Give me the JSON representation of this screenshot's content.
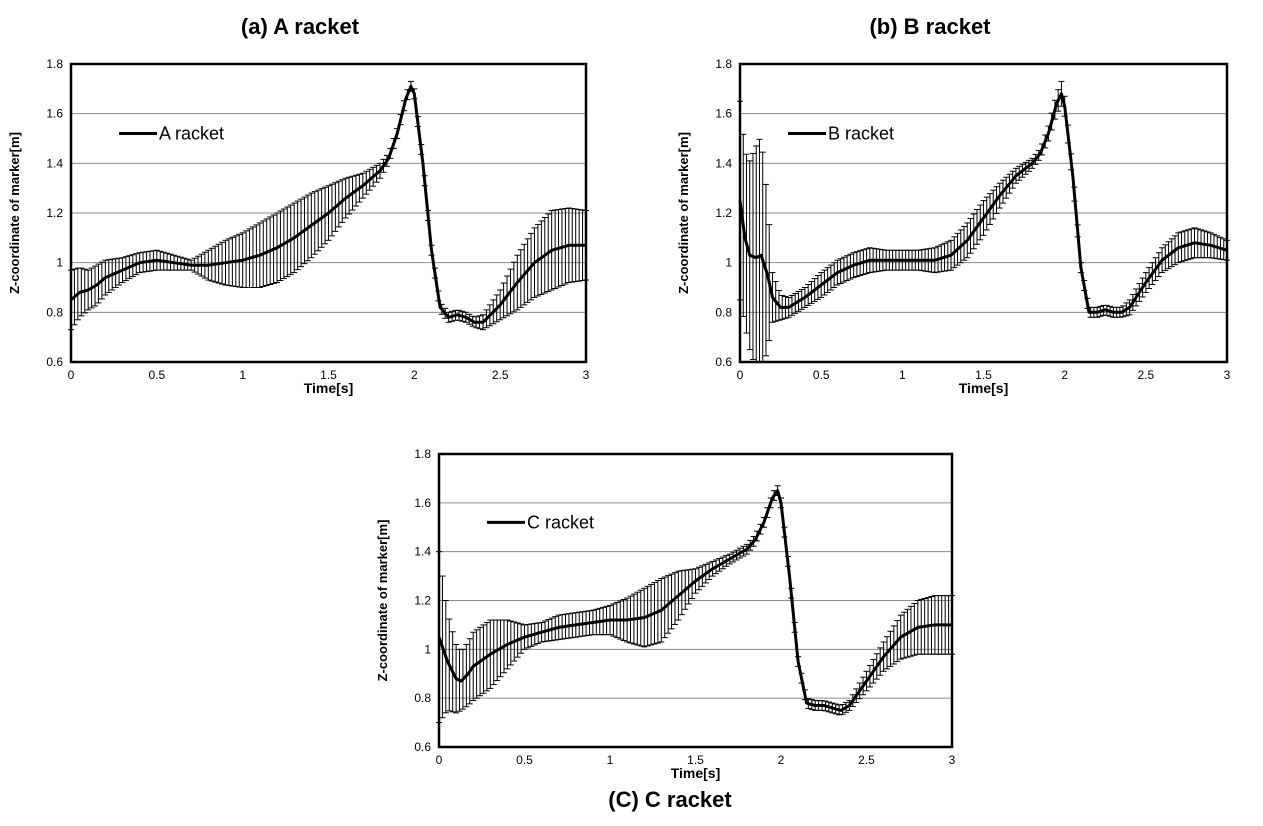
{
  "chart_data": [
    {
      "id": "A",
      "type": "line",
      "title": "(a) A racket",
      "xlabel": "Time[s]",
      "ylabel": "Z-coordinate of marker[m]",
      "xlim": [
        0,
        3
      ],
      "ylim": [
        0.6,
        1.8
      ],
      "xticks": [
        0,
        0.5,
        1,
        1.5,
        2,
        2.5,
        3
      ],
      "xtick_labels": [
        "0",
        "0.5",
        "1",
        "1.5",
        "2",
        "2.5",
        "3"
      ],
      "yticks": [
        0.6,
        0.8,
        1.0,
        1.2,
        1.4,
        1.6,
        1.8
      ],
      "ytick_labels": [
        "0.6",
        "0.8",
        "1",
        "1.2",
        "1.4",
        "1.6",
        "1.8"
      ],
      "grid": "horizontal",
      "legend_position": "upper-left",
      "series": [
        {
          "name": "A racket",
          "error_bars": true,
          "points": [
            [
              0,
              0.85
            ],
            [
              0.05,
              0.88
            ],
            [
              0.1,
              0.89
            ],
            [
              0.15,
              0.91
            ],
            [
              0.2,
              0.94
            ],
            [
              0.3,
              0.97
            ],
            [
              0.4,
              1.0
            ],
            [
              0.5,
              1.01
            ],
            [
              0.6,
              1.0
            ],
            [
              0.7,
              0.99
            ],
            [
              0.8,
              0.99
            ],
            [
              0.9,
              1.0
            ],
            [
              1.0,
              1.01
            ],
            [
              1.1,
              1.03
            ],
            [
              1.2,
              1.06
            ],
            [
              1.3,
              1.1
            ],
            [
              1.4,
              1.15
            ],
            [
              1.5,
              1.2
            ],
            [
              1.6,
              1.26
            ],
            [
              1.7,
              1.31
            ],
            [
              1.8,
              1.37
            ],
            [
              1.85,
              1.42
            ],
            [
              1.9,
              1.52
            ],
            [
              1.95,
              1.66
            ],
            [
              1.98,
              1.71
            ],
            [
              2.0,
              1.68
            ],
            [
              2.05,
              1.4
            ],
            [
              2.1,
              1.05
            ],
            [
              2.15,
              0.82
            ],
            [
              2.2,
              0.78
            ],
            [
              2.25,
              0.79
            ],
            [
              2.3,
              0.78
            ],
            [
              2.35,
              0.76
            ],
            [
              2.4,
              0.76
            ],
            [
              2.5,
              0.83
            ],
            [
              2.6,
              0.92
            ],
            [
              2.7,
              1.0
            ],
            [
              2.8,
              1.05
            ],
            [
              2.9,
              1.07
            ],
            [
              3.0,
              1.07
            ]
          ],
          "errors": [
            [
              0,
              0.12
            ],
            [
              0.05,
              0.1
            ],
            [
              0.1,
              0.08
            ],
            [
              0.15,
              0.08
            ],
            [
              0.2,
              0.07
            ],
            [
              0.3,
              0.05
            ],
            [
              0.4,
              0.04
            ],
            [
              0.5,
              0.04
            ],
            [
              0.6,
              0.03
            ],
            [
              0.7,
              0.02
            ],
            [
              0.8,
              0.06
            ],
            [
              0.9,
              0.09
            ],
            [
              1.0,
              0.11
            ],
            [
              1.1,
              0.13
            ],
            [
              1.2,
              0.14
            ],
            [
              1.3,
              0.14
            ],
            [
              1.4,
              0.13
            ],
            [
              1.5,
              0.11
            ],
            [
              1.6,
              0.08
            ],
            [
              1.7,
              0.05
            ],
            [
              1.8,
              0.03
            ],
            [
              1.85,
              0.02
            ],
            [
              1.9,
              0.02
            ],
            [
              1.95,
              0.02
            ],
            [
              1.98,
              0.02
            ],
            [
              2.0,
              0.02
            ],
            [
              2.05,
              0.02
            ],
            [
              2.1,
              0.02
            ],
            [
              2.15,
              0.02
            ],
            [
              2.2,
              0.02
            ],
            [
              2.25,
              0.02
            ],
            [
              2.3,
              0.02
            ],
            [
              2.35,
              0.02
            ],
            [
              2.4,
              0.03
            ],
            [
              2.5,
              0.06
            ],
            [
              2.6,
              0.11
            ],
            [
              2.7,
              0.14
            ],
            [
              2.8,
              0.16
            ],
            [
              2.9,
              0.15
            ],
            [
              3.0,
              0.14
            ]
          ]
        }
      ]
    },
    {
      "id": "B",
      "type": "line",
      "title": "(b) B racket",
      "xlabel": "Time[s]",
      "ylabel": "Z-coordinate of marker[m]",
      "xlim": [
        0,
        3
      ],
      "ylim": [
        0.6,
        1.8
      ],
      "xticks": [
        0,
        0.5,
        1,
        1.5,
        2,
        2.5,
        3
      ],
      "xtick_labels": [
        "0",
        "0.5",
        "1",
        "1.5",
        "2",
        "2.5",
        "3"
      ],
      "yticks": [
        0.6,
        0.8,
        1.0,
        1.2,
        1.4,
        1.6,
        1.8
      ],
      "ytick_labels": [
        "0.6",
        "0.8",
        "1",
        "1.2",
        "1.4",
        "1.6",
        "1.8"
      ],
      "grid": "horizontal",
      "legend_position": "upper-left",
      "series": [
        {
          "name": "B racket",
          "error_bars": true,
          "points": [
            [
              0,
              1.25
            ],
            [
              0.03,
              1.1
            ],
            [
              0.06,
              1.03
            ],
            [
              0.1,
              1.02
            ],
            [
              0.13,
              1.03
            ],
            [
              0.17,
              0.95
            ],
            [
              0.2,
              0.86
            ],
            [
              0.25,
              0.82
            ],
            [
              0.3,
              0.82
            ],
            [
              0.35,
              0.84
            ],
            [
              0.4,
              0.86
            ],
            [
              0.5,
              0.91
            ],
            [
              0.6,
              0.96
            ],
            [
              0.7,
              0.99
            ],
            [
              0.8,
              1.01
            ],
            [
              0.9,
              1.01
            ],
            [
              1.0,
              1.01
            ],
            [
              1.1,
              1.01
            ],
            [
              1.2,
              1.01
            ],
            [
              1.3,
              1.03
            ],
            [
              1.4,
              1.09
            ],
            [
              1.5,
              1.18
            ],
            [
              1.6,
              1.27
            ],
            [
              1.7,
              1.35
            ],
            [
              1.8,
              1.4
            ],
            [
              1.85,
              1.44
            ],
            [
              1.9,
              1.52
            ],
            [
              1.95,
              1.64
            ],
            [
              1.98,
              1.68
            ],
            [
              2.0,
              1.63
            ],
            [
              2.05,
              1.35
            ],
            [
              2.1,
              0.98
            ],
            [
              2.15,
              0.8
            ],
            [
              2.2,
              0.8
            ],
            [
              2.25,
              0.81
            ],
            [
              2.3,
              0.8
            ],
            [
              2.35,
              0.8
            ],
            [
              2.4,
              0.82
            ],
            [
              2.5,
              0.92
            ],
            [
              2.6,
              1.01
            ],
            [
              2.7,
              1.06
            ],
            [
              2.8,
              1.08
            ],
            [
              2.9,
              1.07
            ],
            [
              3.0,
              1.05
            ]
          ],
          "errors": [
            [
              0,
              0.4
            ],
            [
              0.03,
              0.35
            ],
            [
              0.06,
              0.38
            ],
            [
              0.1,
              0.45
            ],
            [
              0.13,
              0.48
            ],
            [
              0.17,
              0.3
            ],
            [
              0.2,
              0.1
            ],
            [
              0.25,
              0.05
            ],
            [
              0.3,
              0.04
            ],
            [
              0.35,
              0.04
            ],
            [
              0.4,
              0.04
            ],
            [
              0.5,
              0.05
            ],
            [
              0.6,
              0.05
            ],
            [
              0.7,
              0.05
            ],
            [
              0.8,
              0.05
            ],
            [
              0.9,
              0.04
            ],
            [
              1.0,
              0.04
            ],
            [
              1.1,
              0.04
            ],
            [
              1.2,
              0.05
            ],
            [
              1.3,
              0.06
            ],
            [
              1.4,
              0.07
            ],
            [
              1.5,
              0.07
            ],
            [
              1.6,
              0.05
            ],
            [
              1.7,
              0.03
            ],
            [
              1.8,
              0.02
            ],
            [
              1.85,
              0.02
            ],
            [
              1.9,
              0.03
            ],
            [
              1.95,
              0.04
            ],
            [
              1.98,
              0.05
            ],
            [
              2.0,
              0.04
            ],
            [
              2.05,
              0.03
            ],
            [
              2.1,
              0.02
            ],
            [
              2.15,
              0.02
            ],
            [
              2.2,
              0.02
            ],
            [
              2.25,
              0.02
            ],
            [
              2.3,
              0.02
            ],
            [
              2.35,
              0.02
            ],
            [
              2.4,
              0.03
            ],
            [
              2.5,
              0.04
            ],
            [
              2.6,
              0.05
            ],
            [
              2.7,
              0.06
            ],
            [
              2.8,
              0.06
            ],
            [
              2.9,
              0.05
            ],
            [
              3.0,
              0.04
            ]
          ]
        }
      ]
    },
    {
      "id": "C",
      "type": "line",
      "title": "(C) C racket",
      "xlabel": "Time[s]",
      "ylabel": "Z-coordinate of marker[m]",
      "xlim": [
        0,
        3
      ],
      "ylim": [
        0.6,
        1.8
      ],
      "xticks": [
        0,
        0.5,
        1,
        1.5,
        2,
        2.5,
        3
      ],
      "xtick_labels": [
        "0",
        "0.5",
        "1",
        "1.5",
        "2",
        "2.5",
        "3"
      ],
      "yticks": [
        0.6,
        0.8,
        1.0,
        1.2,
        1.4,
        1.6,
        1.8
      ],
      "ytick_labels": [
        "0.6",
        "0.8",
        "1",
        "1.2",
        "1.4",
        "1.6",
        "1.8"
      ],
      "grid": "horizontal",
      "legend_position": "upper-left",
      "series": [
        {
          "name": "C racket",
          "error_bars": true,
          "points": [
            [
              0,
              1.05
            ],
            [
              0.05,
              0.95
            ],
            [
              0.1,
              0.88
            ],
            [
              0.13,
              0.87
            ],
            [
              0.17,
              0.9
            ],
            [
              0.2,
              0.93
            ],
            [
              0.3,
              0.98
            ],
            [
              0.4,
              1.02
            ],
            [
              0.5,
              1.05
            ],
            [
              0.6,
              1.07
            ],
            [
              0.7,
              1.09
            ],
            [
              0.8,
              1.1
            ],
            [
              0.9,
              1.11
            ],
            [
              1.0,
              1.12
            ],
            [
              1.1,
              1.12
            ],
            [
              1.2,
              1.13
            ],
            [
              1.3,
              1.16
            ],
            [
              1.4,
              1.22
            ],
            [
              1.5,
              1.28
            ],
            [
              1.6,
              1.33
            ],
            [
              1.7,
              1.37
            ],
            [
              1.8,
              1.41
            ],
            [
              1.85,
              1.45
            ],
            [
              1.9,
              1.52
            ],
            [
              1.95,
              1.62
            ],
            [
              1.98,
              1.65
            ],
            [
              2.0,
              1.6
            ],
            [
              2.05,
              1.3
            ],
            [
              2.1,
              0.95
            ],
            [
              2.15,
              0.78
            ],
            [
              2.2,
              0.77
            ],
            [
              2.25,
              0.77
            ],
            [
              2.3,
              0.76
            ],
            [
              2.35,
              0.75
            ],
            [
              2.4,
              0.77
            ],
            [
              2.5,
              0.87
            ],
            [
              2.6,
              0.97
            ],
            [
              2.7,
              1.05
            ],
            [
              2.8,
              1.09
            ],
            [
              2.9,
              1.1
            ],
            [
              3.0,
              1.1
            ]
          ],
          "errors": [
            [
              0,
              0.35
            ],
            [
              0.05,
              0.2
            ],
            [
              0.1,
              0.14
            ],
            [
              0.13,
              0.12
            ],
            [
              0.17,
              0.13
            ],
            [
              0.2,
              0.14
            ],
            [
              0.3,
              0.14
            ],
            [
              0.4,
              0.1
            ],
            [
              0.5,
              0.05
            ],
            [
              0.6,
              0.04
            ],
            [
              0.7,
              0.05
            ],
            [
              0.8,
              0.05
            ],
            [
              0.9,
              0.05
            ],
            [
              1.0,
              0.06
            ],
            [
              1.1,
              0.09
            ],
            [
              1.2,
              0.12
            ],
            [
              1.3,
              0.13
            ],
            [
              1.4,
              0.1
            ],
            [
              1.5,
              0.05
            ],
            [
              1.6,
              0.03
            ],
            [
              1.7,
              0.02
            ],
            [
              1.8,
              0.02
            ],
            [
              1.85,
              0.02
            ],
            [
              1.9,
              0.02
            ],
            [
              1.95,
              0.02
            ],
            [
              1.98,
              0.02
            ],
            [
              2.0,
              0.02
            ],
            [
              2.05,
              0.02
            ],
            [
              2.1,
              0.02
            ],
            [
              2.15,
              0.02
            ],
            [
              2.2,
              0.02
            ],
            [
              2.25,
              0.02
            ],
            [
              2.3,
              0.02
            ],
            [
              2.35,
              0.02
            ],
            [
              2.4,
              0.02
            ],
            [
              2.5,
              0.04
            ],
            [
              2.6,
              0.06
            ],
            [
              2.7,
              0.09
            ],
            [
              2.8,
              0.11
            ],
            [
              2.9,
              0.12
            ],
            [
              3.0,
              0.12
            ]
          ]
        }
      ]
    }
  ]
}
